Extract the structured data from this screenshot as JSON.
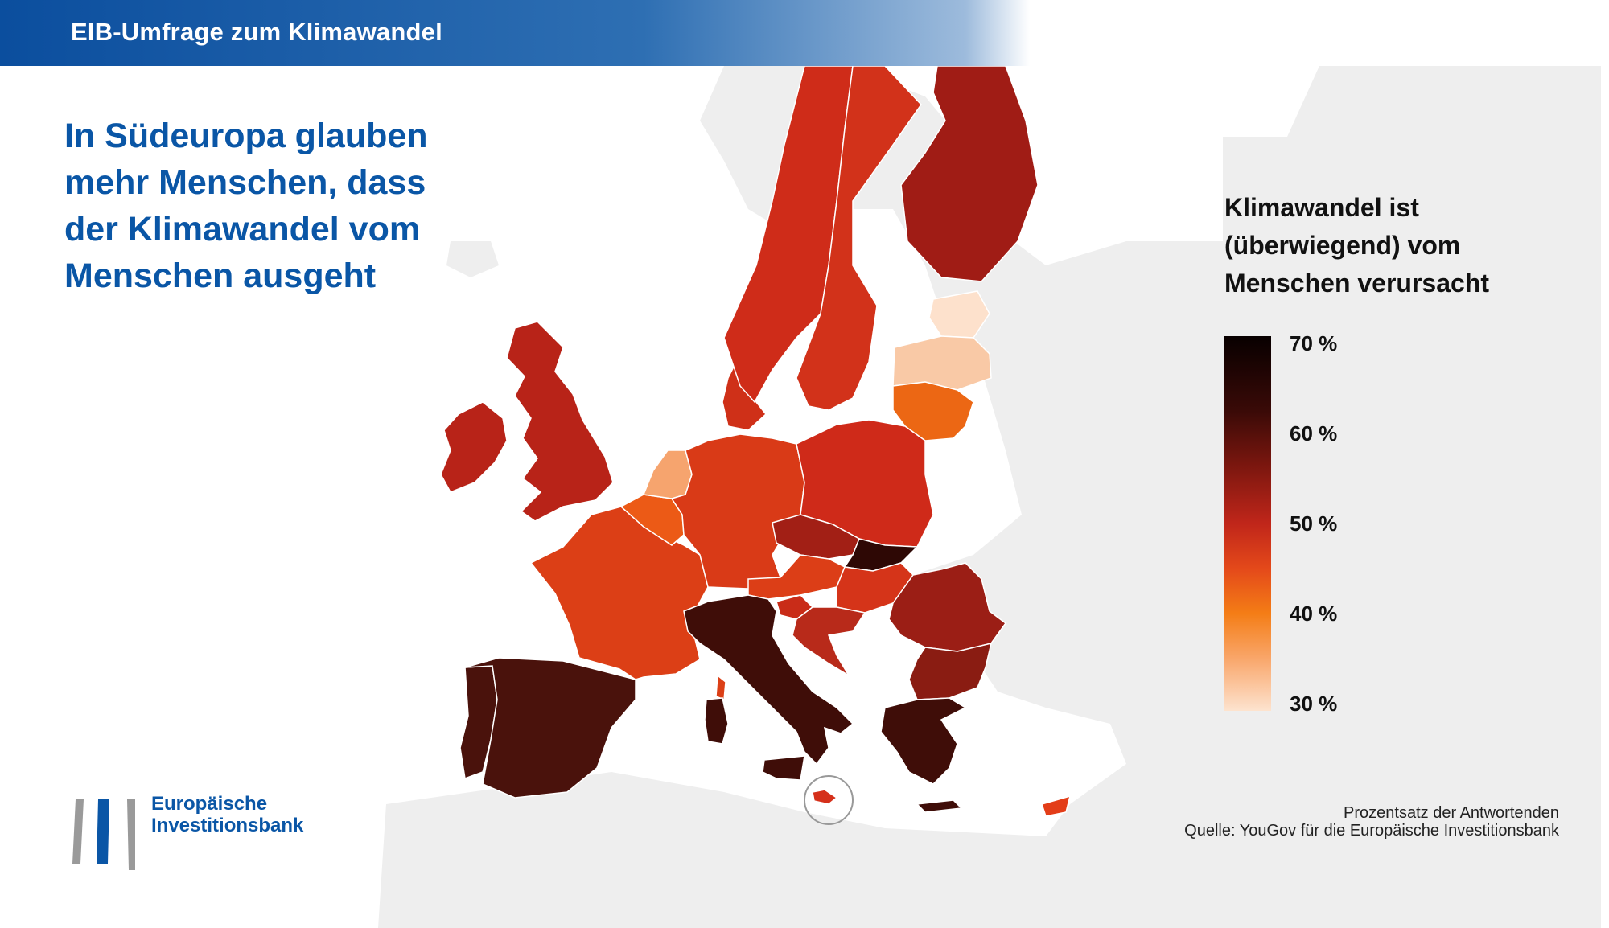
{
  "header": {
    "title": "EIB-Umfrage zum Klimawandel"
  },
  "headline": {
    "lines": [
      "In Südeuropa glauben",
      "mehr Menschen, dass",
      "der Klimawandel vom",
      "Menschen ausgeht"
    ]
  },
  "legend": {
    "title_lines": [
      "Klimawandel ist",
      "(überwiegend) vom",
      "Menschen verursacht"
    ],
    "ticks": [
      "70 %",
      "60 %",
      "50 %",
      "40 %",
      "30 %"
    ],
    "min_percent": 30,
    "max_percent": 70
  },
  "source": {
    "line1": "Prozentsatz der Antwortenden",
    "line2": "Quelle: YouGov für die Europäische Investitionsbank"
  },
  "logo": {
    "line1": "Europäische",
    "line2": "Investitionsbank"
  },
  "colors": {
    "brand_blue": "#0a56a6",
    "land_bg": "#eeeeee",
    "sea": "#ffffff"
  },
  "regions": [
    {
      "id": "ireland",
      "color": "#b82318"
    },
    {
      "id": "uk",
      "color": "#b82318"
    },
    {
      "id": "portugal",
      "color": "#4a120c"
    },
    {
      "id": "spain",
      "color": "#4a120c"
    },
    {
      "id": "france",
      "color": "#dc3f16"
    },
    {
      "id": "belgium",
      "color": "#ec5a16"
    },
    {
      "id": "netherlands",
      "color": "#f6a46e"
    },
    {
      "id": "luxembourg",
      "color": "#e4491a"
    },
    {
      "id": "germany",
      "color": "#d93a17"
    },
    {
      "id": "denmark",
      "color": "#cf3018"
    },
    {
      "id": "norway",
      "color": "#cf2c19"
    },
    {
      "id": "sweden",
      "color": "#d2321a"
    },
    {
      "id": "finland",
      "color": "#a01c15"
    },
    {
      "id": "estonia",
      "color": "#fde1cc"
    },
    {
      "id": "latvia",
      "color": "#f9c9a6"
    },
    {
      "id": "lithuania",
      "color": "#ec6714"
    },
    {
      "id": "poland",
      "color": "#cf2a19"
    },
    {
      "id": "czechia",
      "color": "#a21f15"
    },
    {
      "id": "slovakia",
      "color": "#2e0805"
    },
    {
      "id": "austria",
      "color": "#dc3e17"
    },
    {
      "id": "hungary",
      "color": "#d53419"
    },
    {
      "id": "slovenia",
      "color": "#c92c18"
    },
    {
      "id": "croatia",
      "color": "#b82a1a"
    },
    {
      "id": "romania",
      "color": "#9b1e15"
    },
    {
      "id": "bulgaria",
      "color": "#8a1c12"
    },
    {
      "id": "greece",
      "color": "#3f0d08"
    },
    {
      "id": "italy",
      "color": "#3f0d08"
    },
    {
      "id": "sardinia",
      "color": "#3f0d08"
    },
    {
      "id": "sicily",
      "color": "#3f0d08"
    },
    {
      "id": "corsica",
      "color": "#dc3f16"
    },
    {
      "id": "malta",
      "color": "#d5301a"
    },
    {
      "id": "cyprus",
      "color": "#e33d18"
    }
  ]
}
